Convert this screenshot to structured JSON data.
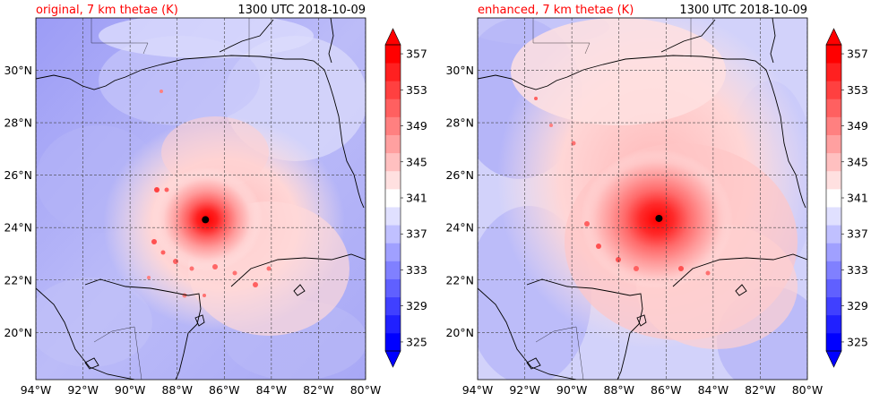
{
  "figure": {
    "panels": [
      {
        "id": "original",
        "title_left": "original, 7 km thetae (K)",
        "title_right": "1300 UTC 2018-10-09",
        "title_left_color": "#ff0000",
        "storm_center": {
          "lon": -86.8,
          "lat": 24.3
        }
      },
      {
        "id": "enhanced",
        "title_left": "enhanced, 7 km thetae (K)",
        "title_right": "1300 UTC 2018-10-09",
        "title_left_color": "#ff0000",
        "storm_center": {
          "lon": -86.3,
          "lat": 24.35
        }
      }
    ],
    "map_extent": {
      "lon_min": -94,
      "lon_max": -80,
      "lat_min": 18.2,
      "lat_max": 32
    },
    "lon_ticks": [
      "94°W",
      "92°W",
      "90°W",
      "88°W",
      "86°W",
      "84°W",
      "82°W",
      "80°W"
    ],
    "lon_tick_values": [
      -94,
      -92,
      -90,
      -88,
      -86,
      -84,
      -82,
      -80
    ],
    "lat_ticks": [
      "20°N",
      "22°N",
      "24°N",
      "26°N",
      "28°N",
      "30°N"
    ],
    "lat_tick_values": [
      20,
      22,
      24,
      26,
      28,
      30
    ],
    "gridlines": true,
    "colorbar": {
      "min": 325,
      "max": 357,
      "labels": [
        "325",
        "329",
        "333",
        "337",
        "341",
        "345",
        "349",
        "353",
        "357"
      ],
      "label_values": [
        325,
        329,
        333,
        337,
        341,
        345,
        349,
        353,
        357
      ],
      "colors": [
        "#0000ff",
        "#2020ff",
        "#4040ff",
        "#6060ff",
        "#8080ff",
        "#a0a0ff",
        "#c0c0ff",
        "#e0e0ff",
        "#ffffff",
        "#ffe0e0",
        "#ffc0c0",
        "#ffa0a0",
        "#ff8080",
        "#ff6060",
        "#ff4040",
        "#ff2020",
        "#ff0000"
      ],
      "extend": "both"
    }
  }
}
